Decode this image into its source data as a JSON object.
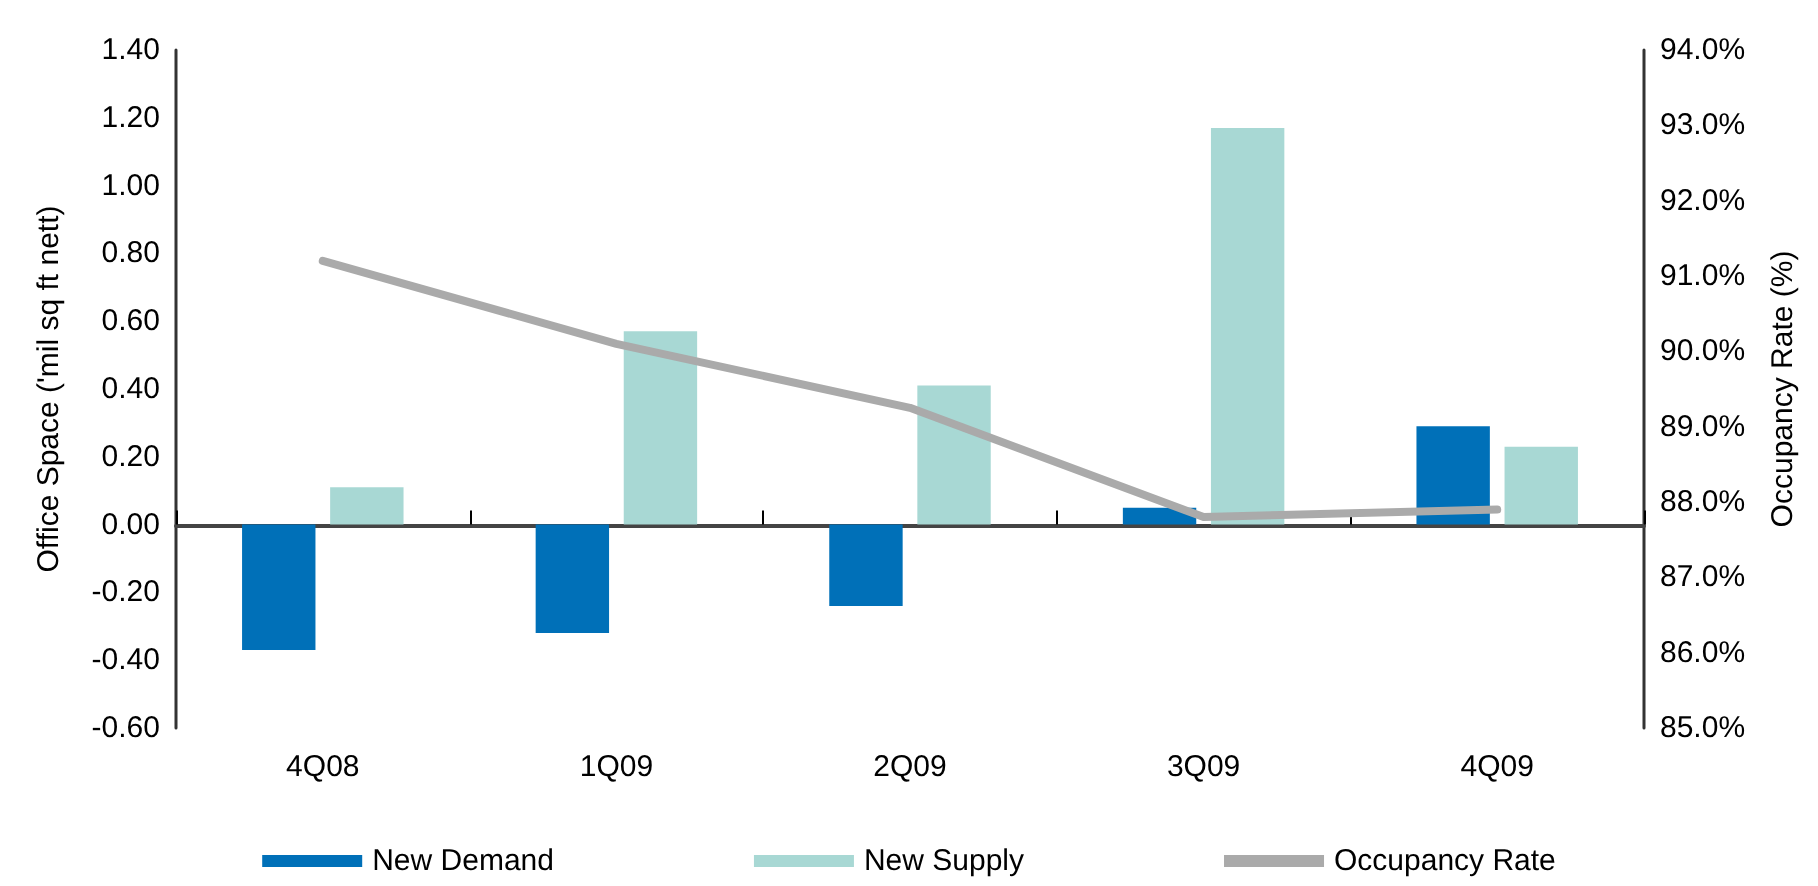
{
  "chart_data": {
    "type": "bar",
    "categories": [
      "4Q08",
      "1Q09",
      "2Q09",
      "3Q09",
      "4Q09"
    ],
    "series": [
      {
        "name": "New Demand",
        "color": "#0070b8",
        "values": [
          -0.37,
          -0.32,
          -0.24,
          0.05,
          0.29
        ]
      },
      {
        "name": "New Supply",
        "color": "#a8d8d4",
        "values": [
          0.11,
          0.57,
          0.41,
          1.17,
          0.23
        ]
      },
      {
        "name": "Occupancy Rate",
        "type": "line",
        "axis": "y2",
        "color": "#aaaaaa",
        "values": [
          91.2,
          90.1,
          89.25,
          87.8,
          87.9
        ]
      }
    ],
    "ylabel": "Office Space ('mil sq ft nett)",
    "y2label": "Occupancy Rate (%)",
    "ylim": [
      -0.6,
      1.4
    ],
    "yticks": [
      {
        "value": -0.6,
        "label": "-0.60"
      },
      {
        "value": -0.4,
        "label": "-0.40"
      },
      {
        "value": -0.2,
        "label": "-0.20"
      },
      {
        "value": 0,
        "label": "0.00"
      },
      {
        "value": 0.2,
        "label": "0.20"
      },
      {
        "value": 0.4,
        "label": "0.40"
      },
      {
        "value": 0.6,
        "label": "0.60"
      },
      {
        "value": 0.8,
        "label": "0.80"
      },
      {
        "value": 1.0,
        "label": "1.00"
      },
      {
        "value": 1.2,
        "label": "1.20"
      },
      {
        "value": 1.4,
        "label": "1.40"
      }
    ],
    "y2lim": [
      85,
      94
    ],
    "y2ticks": [
      {
        "value": 85,
        "label": "85.0%"
      },
      {
        "value": 86,
        "label": "86.0%"
      },
      {
        "value": 87,
        "label": "87.0%"
      },
      {
        "value": 88,
        "label": "88.0%"
      },
      {
        "value": 89,
        "label": "89.0%"
      },
      {
        "value": 90,
        "label": "90.0%"
      },
      {
        "value": 91,
        "label": "91.0%"
      },
      {
        "value": 92,
        "label": "92.0%"
      },
      {
        "value": 93,
        "label": "93.0%"
      },
      {
        "value": 94,
        "label": "94.0%"
      }
    ],
    "legend": "bottom",
    "marker": "none",
    "line_style": "solid"
  }
}
